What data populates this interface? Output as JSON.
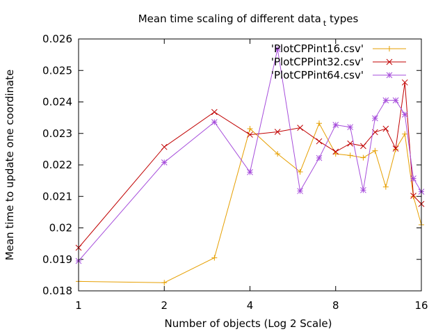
{
  "chart_data": {
    "type": "line",
    "title": "Mean time scaling of different data",
    "title_subscript": "t",
    "title_suffix": " types",
    "xlabel": "Number of objects (Log 2 Scale)",
    "ylabel": "Mean time to update one coordinate",
    "xscale": "log2",
    "xlim": [
      1,
      16
    ],
    "ylim": [
      0.018,
      0.026
    ],
    "xticks": [
      1,
      2,
      4,
      8,
      16
    ],
    "xtick_labels": [
      "1",
      "2",
      "4",
      "8",
      "16"
    ],
    "yticks": [
      0.018,
      0.019,
      0.02,
      0.021,
      0.022,
      0.023,
      0.024,
      0.025,
      0.026
    ],
    "ytick_labels": [
      "0.018",
      "0.019",
      "0.02",
      "0.021",
      "0.022",
      "0.023",
      "0.024",
      "0.025",
      "0.026"
    ],
    "legend_position": "top-right",
    "grid": false,
    "x": [
      1,
      2,
      3,
      4,
      5,
      6,
      7,
      8,
      9,
      10,
      11,
      12,
      13,
      14,
      15,
      16
    ],
    "series": [
      {
        "name": "'PlotCPPint16.csv'",
        "color": "#e69f00",
        "marker": "plus",
        "values": [
          0.0183,
          0.01826,
          0.01905,
          0.02315,
          0.02235,
          0.02178,
          0.02332,
          0.02235,
          0.0223,
          0.02223,
          0.02245,
          0.0213,
          0.0225,
          0.02298,
          0.021,
          0.0201
        ]
      },
      {
        "name": "'PlotCPPint32.csv'",
        "color": "#c00000",
        "marker": "cross",
        "values": [
          0.01937,
          0.02257,
          0.02368,
          0.02296,
          0.02305,
          0.02318,
          0.02275,
          0.02242,
          0.02268,
          0.0226,
          0.02304,
          0.02315,
          0.02252,
          0.02462,
          0.02102,
          0.02076
        ]
      },
      {
        "name": "'PlotCPPint64.csv'",
        "color": "#a64ddb",
        "marker": "star",
        "values": [
          0.01895,
          0.02208,
          0.02336,
          0.02177,
          0.02568,
          0.02117,
          0.02222,
          0.02327,
          0.0232,
          0.0212,
          0.02348,
          0.02405,
          0.02405,
          0.0236,
          0.02157,
          0.02115
        ]
      }
    ]
  }
}
